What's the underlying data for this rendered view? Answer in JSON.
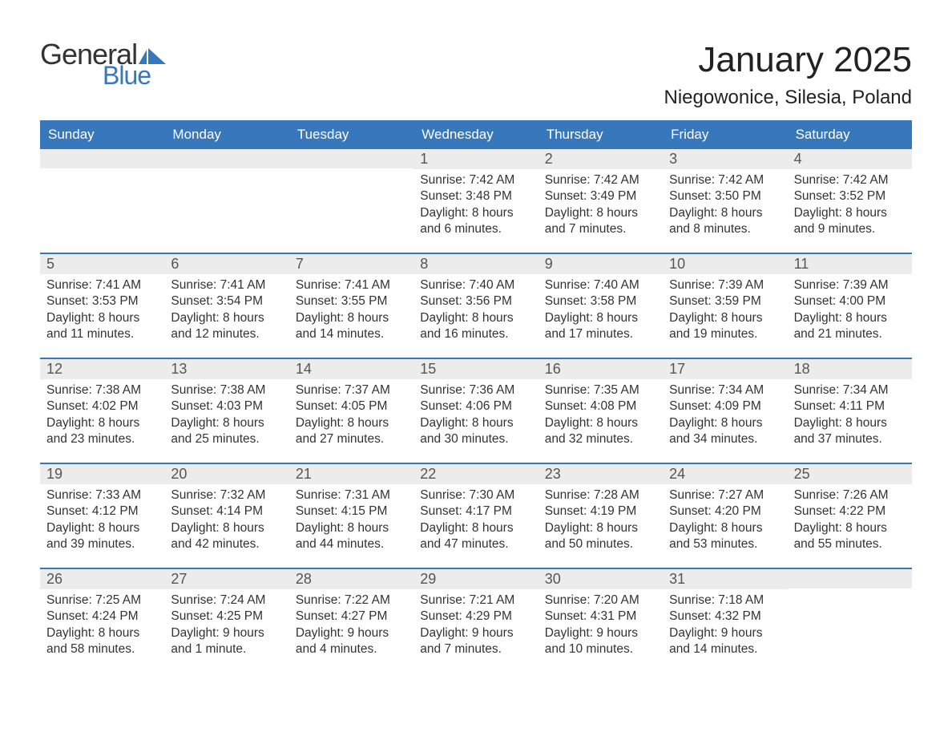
{
  "logo": {
    "text_general": "General",
    "text_blue": "Blue",
    "flag_color": "#3777bc"
  },
  "title": "January 2025",
  "location": "Niegowonice, Silesia, Poland",
  "colors": {
    "header_bg": "#3777bc",
    "header_text": "#ffffff",
    "daynum_bg": "#ececec",
    "daynum_text": "#555555",
    "body_text": "#333333",
    "rule": "#3777bc",
    "page_bg": "#ffffff"
  },
  "day_labels": [
    "Sunday",
    "Monday",
    "Tuesday",
    "Wednesday",
    "Thursday",
    "Friday",
    "Saturday"
  ],
  "weeks": [
    [
      {
        "n": "",
        "sunrise": "",
        "sunset": "",
        "daylight": ""
      },
      {
        "n": "",
        "sunrise": "",
        "sunset": "",
        "daylight": ""
      },
      {
        "n": "",
        "sunrise": "",
        "sunset": "",
        "daylight": ""
      },
      {
        "n": "1",
        "sunrise": "Sunrise: 7:42 AM",
        "sunset": "Sunset: 3:48 PM",
        "daylight": "Daylight: 8 hours and 6 minutes."
      },
      {
        "n": "2",
        "sunrise": "Sunrise: 7:42 AM",
        "sunset": "Sunset: 3:49 PM",
        "daylight": "Daylight: 8 hours and 7 minutes."
      },
      {
        "n": "3",
        "sunrise": "Sunrise: 7:42 AM",
        "sunset": "Sunset: 3:50 PM",
        "daylight": "Daylight: 8 hours and 8 minutes."
      },
      {
        "n": "4",
        "sunrise": "Sunrise: 7:42 AM",
        "sunset": "Sunset: 3:52 PM",
        "daylight": "Daylight: 8 hours and 9 minutes."
      }
    ],
    [
      {
        "n": "5",
        "sunrise": "Sunrise: 7:41 AM",
        "sunset": "Sunset: 3:53 PM",
        "daylight": "Daylight: 8 hours and 11 minutes."
      },
      {
        "n": "6",
        "sunrise": "Sunrise: 7:41 AM",
        "sunset": "Sunset: 3:54 PM",
        "daylight": "Daylight: 8 hours and 12 minutes."
      },
      {
        "n": "7",
        "sunrise": "Sunrise: 7:41 AM",
        "sunset": "Sunset: 3:55 PM",
        "daylight": "Daylight: 8 hours and 14 minutes."
      },
      {
        "n": "8",
        "sunrise": "Sunrise: 7:40 AM",
        "sunset": "Sunset: 3:56 PM",
        "daylight": "Daylight: 8 hours and 16 minutes."
      },
      {
        "n": "9",
        "sunrise": "Sunrise: 7:40 AM",
        "sunset": "Sunset: 3:58 PM",
        "daylight": "Daylight: 8 hours and 17 minutes."
      },
      {
        "n": "10",
        "sunrise": "Sunrise: 7:39 AM",
        "sunset": "Sunset: 3:59 PM",
        "daylight": "Daylight: 8 hours and 19 minutes."
      },
      {
        "n": "11",
        "sunrise": "Sunrise: 7:39 AM",
        "sunset": "Sunset: 4:00 PM",
        "daylight": "Daylight: 8 hours and 21 minutes."
      }
    ],
    [
      {
        "n": "12",
        "sunrise": "Sunrise: 7:38 AM",
        "sunset": "Sunset: 4:02 PM",
        "daylight": "Daylight: 8 hours and 23 minutes."
      },
      {
        "n": "13",
        "sunrise": "Sunrise: 7:38 AM",
        "sunset": "Sunset: 4:03 PM",
        "daylight": "Daylight: 8 hours and 25 minutes."
      },
      {
        "n": "14",
        "sunrise": "Sunrise: 7:37 AM",
        "sunset": "Sunset: 4:05 PM",
        "daylight": "Daylight: 8 hours and 27 minutes."
      },
      {
        "n": "15",
        "sunrise": "Sunrise: 7:36 AM",
        "sunset": "Sunset: 4:06 PM",
        "daylight": "Daylight: 8 hours and 30 minutes."
      },
      {
        "n": "16",
        "sunrise": "Sunrise: 7:35 AM",
        "sunset": "Sunset: 4:08 PM",
        "daylight": "Daylight: 8 hours and 32 minutes."
      },
      {
        "n": "17",
        "sunrise": "Sunrise: 7:34 AM",
        "sunset": "Sunset: 4:09 PM",
        "daylight": "Daylight: 8 hours and 34 minutes."
      },
      {
        "n": "18",
        "sunrise": "Sunrise: 7:34 AM",
        "sunset": "Sunset: 4:11 PM",
        "daylight": "Daylight: 8 hours and 37 minutes."
      }
    ],
    [
      {
        "n": "19",
        "sunrise": "Sunrise: 7:33 AM",
        "sunset": "Sunset: 4:12 PM",
        "daylight": "Daylight: 8 hours and 39 minutes."
      },
      {
        "n": "20",
        "sunrise": "Sunrise: 7:32 AM",
        "sunset": "Sunset: 4:14 PM",
        "daylight": "Daylight: 8 hours and 42 minutes."
      },
      {
        "n": "21",
        "sunrise": "Sunrise: 7:31 AM",
        "sunset": "Sunset: 4:15 PM",
        "daylight": "Daylight: 8 hours and 44 minutes."
      },
      {
        "n": "22",
        "sunrise": "Sunrise: 7:30 AM",
        "sunset": "Sunset: 4:17 PM",
        "daylight": "Daylight: 8 hours and 47 minutes."
      },
      {
        "n": "23",
        "sunrise": "Sunrise: 7:28 AM",
        "sunset": "Sunset: 4:19 PM",
        "daylight": "Daylight: 8 hours and 50 minutes."
      },
      {
        "n": "24",
        "sunrise": "Sunrise: 7:27 AM",
        "sunset": "Sunset: 4:20 PM",
        "daylight": "Daylight: 8 hours and 53 minutes."
      },
      {
        "n": "25",
        "sunrise": "Sunrise: 7:26 AM",
        "sunset": "Sunset: 4:22 PM",
        "daylight": "Daylight: 8 hours and 55 minutes."
      }
    ],
    [
      {
        "n": "26",
        "sunrise": "Sunrise: 7:25 AM",
        "sunset": "Sunset: 4:24 PM",
        "daylight": "Daylight: 8 hours and 58 minutes."
      },
      {
        "n": "27",
        "sunrise": "Sunrise: 7:24 AM",
        "sunset": "Sunset: 4:25 PM",
        "daylight": "Daylight: 9 hours and 1 minute."
      },
      {
        "n": "28",
        "sunrise": "Sunrise: 7:22 AM",
        "sunset": "Sunset: 4:27 PM",
        "daylight": "Daylight: 9 hours and 4 minutes."
      },
      {
        "n": "29",
        "sunrise": "Sunrise: 7:21 AM",
        "sunset": "Sunset: 4:29 PM",
        "daylight": "Daylight: 9 hours and 7 minutes."
      },
      {
        "n": "30",
        "sunrise": "Sunrise: 7:20 AM",
        "sunset": "Sunset: 4:31 PM",
        "daylight": "Daylight: 9 hours and 10 minutes."
      },
      {
        "n": "31",
        "sunrise": "Sunrise: 7:18 AM",
        "sunset": "Sunset: 4:32 PM",
        "daylight": "Daylight: 9 hours and 14 minutes."
      },
      {
        "n": "",
        "sunrise": "",
        "sunset": "",
        "daylight": ""
      }
    ]
  ]
}
